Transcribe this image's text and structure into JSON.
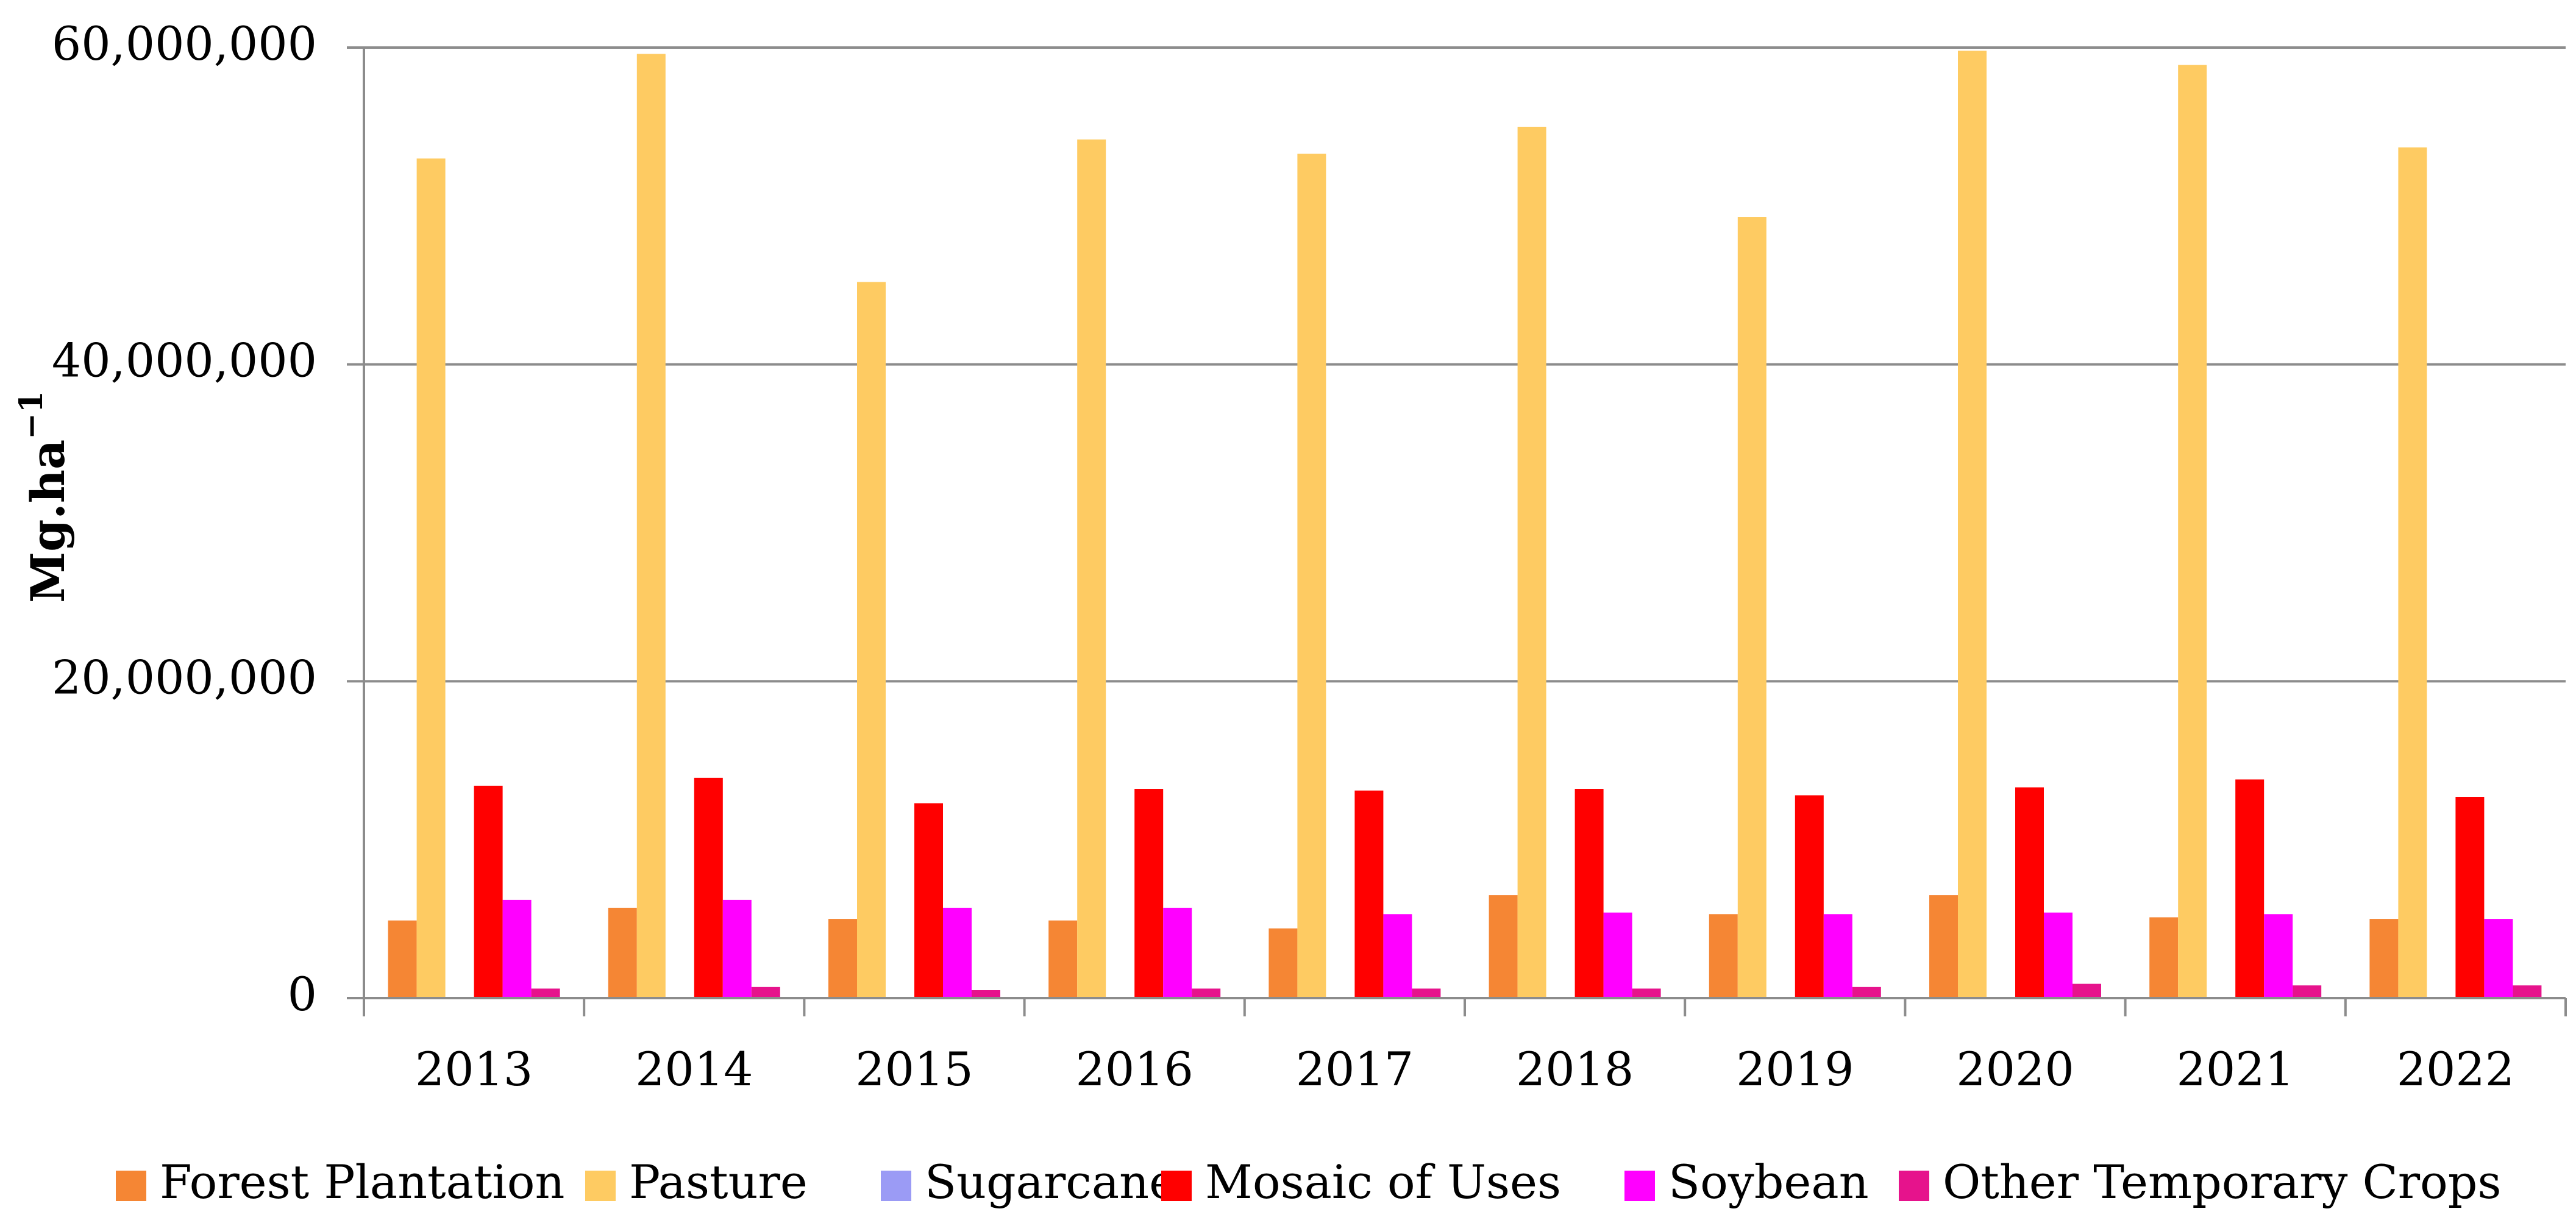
{
  "chart_data": {
    "type": "bar",
    "title": "",
    "xlabel": "",
    "ylabel": "Mg.ha",
    "ylabel_superscript": "−1",
    "ylim": [
      0,
      60000000
    ],
    "yticks": [
      0,
      20000000,
      40000000,
      60000000
    ],
    "ytick_labels": [
      "0",
      "20,000,000",
      "40,000,000",
      "60,000,000"
    ],
    "grid": true,
    "legend_position": "bottom",
    "categories": [
      "2013",
      "2014",
      "2015",
      "2016",
      "2017",
      "2018",
      "2019",
      "2020",
      "2021",
      "2022"
    ],
    "series": [
      {
        "name": "Forest Plantation",
        "color": "#F58634",
        "values": [
          4900000,
          5700000,
          5000000,
          4900000,
          4400000,
          6500000,
          5300000,
          6500000,
          5100000,
          5000000
        ]
      },
      {
        "name": "Pasture",
        "color": "#FECB62",
        "values": [
          53000000,
          59600000,
          45200000,
          54200000,
          53300000,
          55000000,
          49300000,
          59800000,
          58900000,
          53700000
        ]
      },
      {
        "name": "Sugarcane",
        "color": "#9B9BF5",
        "values": [
          50000,
          50000,
          50000,
          50000,
          50000,
          50000,
          50000,
          50000,
          50000,
          50000
        ]
      },
      {
        "name": "Mosaic of Uses",
        "color": "#FF0000",
        "values": [
          13400000,
          13900000,
          12300000,
          13200000,
          13100000,
          13200000,
          12800000,
          13300000,
          13800000,
          12700000
        ]
      },
      {
        "name": "Soybean",
        "color": "#FF00FF",
        "values": [
          6200000,
          6200000,
          5700000,
          5700000,
          5300000,
          5400000,
          5300000,
          5400000,
          5300000,
          5000000
        ]
      },
      {
        "name": "Other Temporary Crops",
        "color": "#E6138C",
        "values": [
          600000,
          700000,
          500000,
          600000,
          600000,
          600000,
          700000,
          900000,
          800000,
          800000
        ]
      }
    ]
  }
}
